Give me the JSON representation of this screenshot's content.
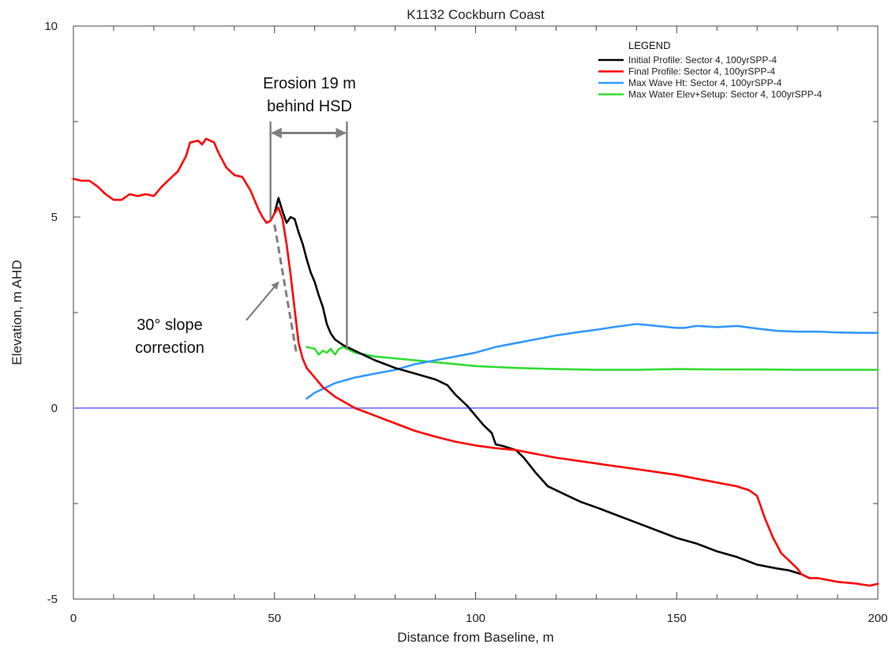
{
  "chart_data": {
    "type": "line",
    "title": "K1132 Cockburn Coast",
    "xlabel": "Distance from Baseline, m",
    "ylabel": "Elevation, m AHD",
    "xlim": [
      0,
      200
    ],
    "ylim": [
      -5,
      10
    ],
    "x_ticks": [
      0,
      50,
      100,
      150,
      200
    ],
    "y_ticks": [
      -5,
      0,
      5,
      10
    ],
    "x_minor_step": 10,
    "y_minor_step": 2.5,
    "grid": false,
    "legend": {
      "title": "LEGEND",
      "placement": "top-right"
    },
    "series": [
      {
        "name": "Initial Profile: Sector 4, 100yrSPP-4",
        "color": "#000000",
        "points": [
          [
            50,
            5.1
          ],
          [
            51,
            5.5
          ],
          [
            52,
            5.15
          ],
          [
            53,
            4.85
          ],
          [
            54,
            5.0
          ],
          [
            55,
            4.95
          ],
          [
            56,
            4.6
          ],
          [
            57,
            4.3
          ],
          [
            58,
            3.9
          ],
          [
            59,
            3.55
          ],
          [
            60,
            3.3
          ],
          [
            61,
            2.95
          ],
          [
            62,
            2.65
          ],
          [
            63,
            2.2
          ],
          [
            64,
            1.95
          ],
          [
            65,
            1.8
          ],
          [
            67,
            1.65
          ],
          [
            70,
            1.5
          ],
          [
            75,
            1.25
          ],
          [
            80,
            1.05
          ],
          [
            85,
            0.9
          ],
          [
            90,
            0.75
          ],
          [
            93,
            0.6
          ],
          [
            95,
            0.35
          ],
          [
            98,
            0.05
          ],
          [
            102,
            -0.45
          ],
          [
            104,
            -0.65
          ],
          [
            105,
            -0.95
          ],
          [
            107,
            -1.0
          ],
          [
            110,
            -1.1
          ],
          [
            112,
            -1.3
          ],
          [
            115,
            -1.7
          ],
          [
            118,
            -2.05
          ],
          [
            122,
            -2.25
          ],
          [
            126,
            -2.45
          ],
          [
            130,
            -2.6
          ],
          [
            135,
            -2.8
          ],
          [
            140,
            -3.0
          ],
          [
            145,
            -3.2
          ],
          [
            150,
            -3.4
          ],
          [
            155,
            -3.55
          ],
          [
            160,
            -3.75
          ],
          [
            165,
            -3.9
          ],
          [
            170,
            -4.1
          ],
          [
            175,
            -4.2
          ],
          [
            178,
            -4.25
          ],
          [
            181,
            -4.35
          ],
          [
            183,
            -4.45
          ]
        ]
      },
      {
        "name": "Final Profile: Sector 4, 100yrSPP-4",
        "color": "#ff0000",
        "points": [
          [
            0,
            6.0
          ],
          [
            2,
            5.95
          ],
          [
            4,
            5.95
          ],
          [
            6,
            5.8
          ],
          [
            8,
            5.6
          ],
          [
            10,
            5.45
          ],
          [
            12,
            5.45
          ],
          [
            14,
            5.6
          ],
          [
            16,
            5.55
          ],
          [
            18,
            5.6
          ],
          [
            20,
            5.55
          ],
          [
            22,
            5.8
          ],
          [
            24,
            6.0
          ],
          [
            26,
            6.2
          ],
          [
            28,
            6.6
          ],
          [
            29,
            6.95
          ],
          [
            31,
            7.0
          ],
          [
            32,
            6.9
          ],
          [
            33,
            7.05
          ],
          [
            35,
            6.95
          ],
          [
            36,
            6.7
          ],
          [
            38,
            6.3
          ],
          [
            40,
            6.1
          ],
          [
            42,
            6.05
          ],
          [
            44,
            5.7
          ],
          [
            46,
            5.2
          ],
          [
            47,
            5.0
          ],
          [
            48,
            4.85
          ],
          [
            49,
            4.9
          ],
          [
            50,
            5.1
          ],
          [
            51,
            5.25
          ],
          [
            52,
            4.95
          ],
          [
            53,
            4.3
          ],
          [
            54,
            3.5
          ],
          [
            55,
            2.6
          ],
          [
            56,
            1.7
          ],
          [
            57,
            1.3
          ],
          [
            58,
            1.05
          ],
          [
            60,
            0.8
          ],
          [
            62,
            0.55
          ],
          [
            65,
            0.3
          ],
          [
            70,
            0.0
          ],
          [
            75,
            -0.2
          ],
          [
            80,
            -0.4
          ],
          [
            85,
            -0.6
          ],
          [
            90,
            -0.75
          ],
          [
            95,
            -0.88
          ],
          [
            100,
            -0.98
          ],
          [
            105,
            -1.05
          ],
          [
            110,
            -1.1
          ],
          [
            115,
            -1.2
          ],
          [
            120,
            -1.3
          ],
          [
            130,
            -1.45
          ],
          [
            140,
            -1.6
          ],
          [
            150,
            -1.75
          ],
          [
            160,
            -1.95
          ],
          [
            165,
            -2.05
          ],
          [
            168,
            -2.15
          ],
          [
            170,
            -2.3
          ],
          [
            172,
            -2.9
          ],
          [
            174,
            -3.4
          ],
          [
            176,
            -3.8
          ],
          [
            178,
            -4.0
          ],
          [
            180,
            -4.2
          ],
          [
            181,
            -4.35
          ],
          [
            183,
            -4.45
          ],
          [
            185,
            -4.45
          ],
          [
            190,
            -4.55
          ],
          [
            195,
            -4.6
          ],
          [
            198,
            -4.65
          ],
          [
            200,
            -4.6
          ]
        ]
      },
      {
        "name": "Max Wave Ht: Sector 4, 100yrSPP-4",
        "color": "#3399ff",
        "points": [
          [
            58,
            0.25
          ],
          [
            60,
            0.4
          ],
          [
            62,
            0.5
          ],
          [
            65,
            0.65
          ],
          [
            70,
            0.8
          ],
          [
            75,
            0.9
          ],
          [
            80,
            1.0
          ],
          [
            85,
            1.15
          ],
          [
            90,
            1.25
          ],
          [
            95,
            1.35
          ],
          [
            100,
            1.45
          ],
          [
            105,
            1.6
          ],
          [
            110,
            1.7
          ],
          [
            115,
            1.8
          ],
          [
            120,
            1.9
          ],
          [
            125,
            1.98
          ],
          [
            130,
            2.05
          ],
          [
            135,
            2.13
          ],
          [
            140,
            2.2
          ],
          [
            145,
            2.15
          ],
          [
            150,
            2.1
          ],
          [
            152,
            2.1
          ],
          [
            155,
            2.15
          ],
          [
            160,
            2.12
          ],
          [
            165,
            2.15
          ],
          [
            170,
            2.08
          ],
          [
            175,
            2.02
          ],
          [
            180,
            2.0
          ],
          [
            185,
            2.0
          ],
          [
            190,
            1.98
          ],
          [
            195,
            1.97
          ],
          [
            200,
            1.97
          ]
        ]
      },
      {
        "name": "Max Water Elev+Setup: Sector 4, 100yrSPP-4",
        "color": "#33dd33",
        "points": [
          [
            58,
            1.6
          ],
          [
            60,
            1.55
          ],
          [
            61,
            1.4
          ],
          [
            62,
            1.5
          ],
          [
            63,
            1.45
          ],
          [
            64,
            1.55
          ],
          [
            65,
            1.4
          ],
          [
            66,
            1.55
          ],
          [
            67,
            1.6
          ],
          [
            68,
            1.55
          ],
          [
            70,
            1.45
          ],
          [
            75,
            1.35
          ],
          [
            80,
            1.3
          ],
          [
            90,
            1.2
          ],
          [
            100,
            1.1
          ],
          [
            110,
            1.05
          ],
          [
            120,
            1.02
          ],
          [
            130,
            1.0
          ],
          [
            140,
            1.0
          ],
          [
            150,
            1.02
          ],
          [
            160,
            1.01
          ],
          [
            170,
            1.01
          ],
          [
            180,
            1.0
          ],
          [
            190,
            1.0
          ],
          [
            200,
            1.0
          ]
        ]
      },
      {
        "color": "#6666ff",
        "points": [
          [
            0,
            0
          ],
          [
            200,
            0
          ]
        ]
      }
    ],
    "annotations": {
      "erosion_lines": [
        49,
        68
      ],
      "erosion_line_top": 7.5,
      "erosion_arrow_y": 7.2,
      "slope_line": [
        [
          50,
          4.8
        ],
        [
          55.5,
          1.4
        ]
      ],
      "slope_arrow_from": [
        43,
        2.3
      ],
      "slope_arrow_to": [
        51,
        3.3
      ],
      "erosion_label": [
        "Erosion 19 m",
        "behind HSD"
      ],
      "slope_label": [
        "30° slope",
        "correction"
      ],
      "annotation_color": "#7f7f7f"
    }
  }
}
